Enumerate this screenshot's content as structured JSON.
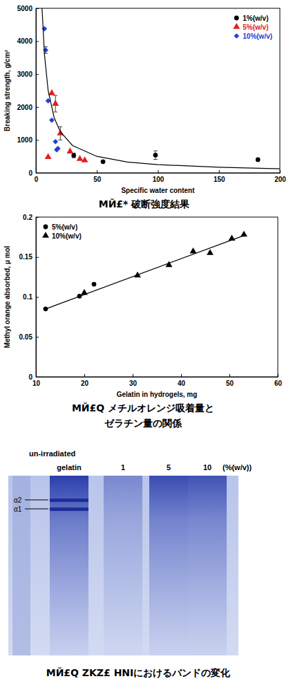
{
  "chart_data": [
    {
      "type": "scatter",
      "caption": [
        "MЙ£* 破断強度結果"
      ],
      "x_label": "Specific water content",
      "y_label": "Breaking strength, g/cm²",
      "xlim": [
        0,
        200
      ],
      "ylim": [
        0,
        5000
      ],
      "xticks": [
        0,
        50,
        100,
        150,
        200
      ],
      "yticks": [
        0,
        1000,
        2000,
        3000,
        4000,
        5000
      ],
      "legend": "upper right",
      "series": [
        {
          "name": "1%(w/v)",
          "color": "#000000",
          "marker": "circle",
          "x": [
            31,
            55,
            98,
            182
          ],
          "values": [
            530,
            340,
            540,
            400
          ],
          "errors": [
            70,
            null,
            130,
            null
          ]
        },
        {
          "name": "5%(w/v)",
          "color": "#e02020",
          "marker": "triangle",
          "x": [
            10,
            13,
            16,
            20,
            28,
            36,
            40
          ],
          "values": [
            480,
            2420,
            2100,
            1200,
            650,
            420,
            380
          ],
          "errors": [
            null,
            null,
            250,
            200,
            null,
            null,
            null
          ]
        },
        {
          "name": "10%(w/v)",
          "color": "#2040e0",
          "marker": "diamond",
          "x": [
            7,
            8,
            10,
            13,
            16,
            17,
            18
          ],
          "values": [
            4380,
            3730,
            2190,
            1600,
            950,
            700,
            740
          ],
          "errors": [
            null,
            100,
            null,
            null,
            null,
            null,
            null
          ]
        },
        {
          "type": "line",
          "color": "#000000",
          "line_style": "solid",
          "x": [
            5,
            7,
            10,
            15,
            20,
            30,
            50,
            75,
            100,
            150,
            200
          ],
          "values": [
            5000,
            3600,
            2500,
            1670,
            1250,
            830,
            500,
            330,
            250,
            170,
            125
          ]
        }
      ]
    },
    {
      "type": "scatter",
      "caption": [
        "MЙ£Q メチルオレンジ吸着量と",
        "ゼラチン量の関係"
      ],
      "x_label": "Gelatin in hydrogels, mg",
      "y_label": "Methyl orange absorbed, μ mol",
      "xlim": [
        10,
        60
      ],
      "ylim": [
        0,
        0.2
      ],
      "xticks": [
        10,
        20,
        30,
        40,
        50,
        60
      ],
      "yticks": [
        0,
        0.05,
        0.1,
        0.15,
        0.2
      ],
      "legend": "upper left",
      "series": [
        {
          "name": "5%(w/v)",
          "color": "#000000",
          "marker": "circle",
          "x": [
            12,
            19,
            22
          ],
          "values": [
            0.085,
            0.101,
            0.116
          ]
        },
        {
          "name": "10%(w/v)",
          "color": "#000000",
          "marker": "triangle",
          "x": [
            20,
            31,
            37.5,
            42.5,
            46,
            50.5,
            53
          ],
          "values": [
            0.105,
            0.127,
            0.14,
            0.157,
            0.155,
            0.173,
            0.178
          ]
        },
        {
          "type": "line",
          "color": "#000000",
          "line_style": "solid",
          "x": [
            12,
            53
          ],
          "values": [
            0.085,
            0.177
          ]
        }
      ]
    }
  ],
  "gel": {
    "header": "un-irradiated",
    "lanes": [
      "gelatin",
      "1",
      "5",
      "10"
    ],
    "unit": "(%(w/v))",
    "bands": [
      "α2",
      "α1"
    ],
    "caption": "MЙ£Q ZKZ£ HNIにおけるバンドの変化"
  }
}
